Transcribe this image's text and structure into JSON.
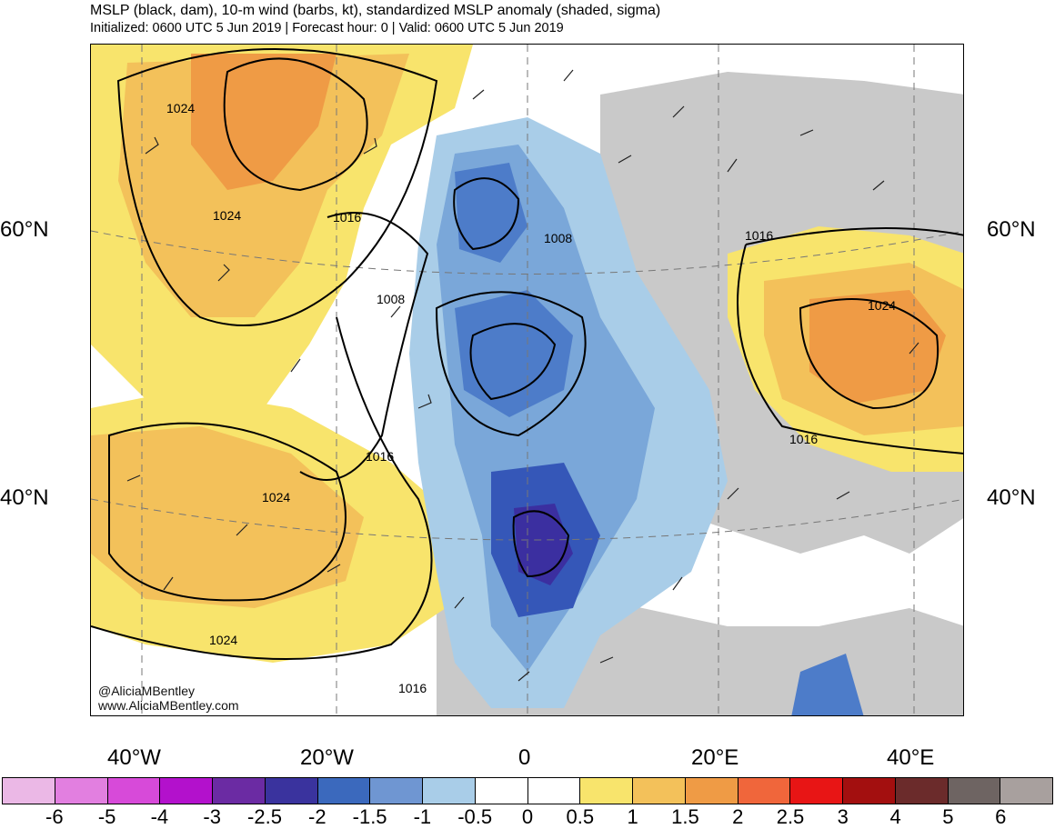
{
  "header": {
    "title": "MSLP (black, dam), 10-m wind (barbs, kt), standardized MSLP anomaly (shaded, sigma)",
    "subtitle": "Initialized: 0600 UTC 5 Jun 2019 | Forecast hour: 0 | Valid: 0600 UTC 5 Jun 2019"
  },
  "map": {
    "lat_labels": {
      "n60": "60°N",
      "n40": "40°N"
    },
    "lon_labels": {
      "w40": "40°W",
      "w20": "20°W",
      "zero": "0",
      "e20": "20°E",
      "e40": "40°E"
    },
    "isobar_labels": [
      "1024",
      "1024",
      "1016",
      "1008",
      "1008",
      "1016",
      "1024",
      "1024",
      "1016",
      "1016",
      "1024",
      "1016"
    ],
    "anomaly_colors": {
      "neg_0_5": "#a9cde8",
      "neg_1": "#7aa7d9",
      "neg_1_5": "#4d7cc9",
      "neg_2": "#3557b8",
      "neg_2_5": "#3b2fa0",
      "pos_0_5": "#f8e46c",
      "pos_1": "#f3c15a",
      "pos_1_5": "#ef9b45",
      "pos_2": "#f0743b",
      "land": "#c9c9c9",
      "ocean": "#ffffff"
    }
  },
  "credits": {
    "handle": "@AliciaMBentley",
    "website": "www.AliciaMBentley.com"
  },
  "colorbar": {
    "colors": [
      "#ebb8e6",
      "#e27fe0",
      "#d74ad9",
      "#b311cc",
      "#6b2ba3",
      "#3a339e",
      "#3b69bd",
      "#6f96d2",
      "#a9cde8",
      "#ffffff",
      "#ffffff",
      "#f8e46c",
      "#f3c15a",
      "#ef9b45",
      "#f0663b",
      "#e81515",
      "#a30f0f",
      "#6b2b2b",
      "#6e6462",
      "#a8a09e"
    ],
    "labels": [
      "-6",
      "-5",
      "-4",
      "-3",
      "-2.5",
      "-2",
      "-1.5",
      "-1",
      "-0.5",
      "0",
      "0.5",
      "1",
      "1.5",
      "2",
      "2.5",
      "3",
      "4",
      "5",
      "6"
    ]
  }
}
